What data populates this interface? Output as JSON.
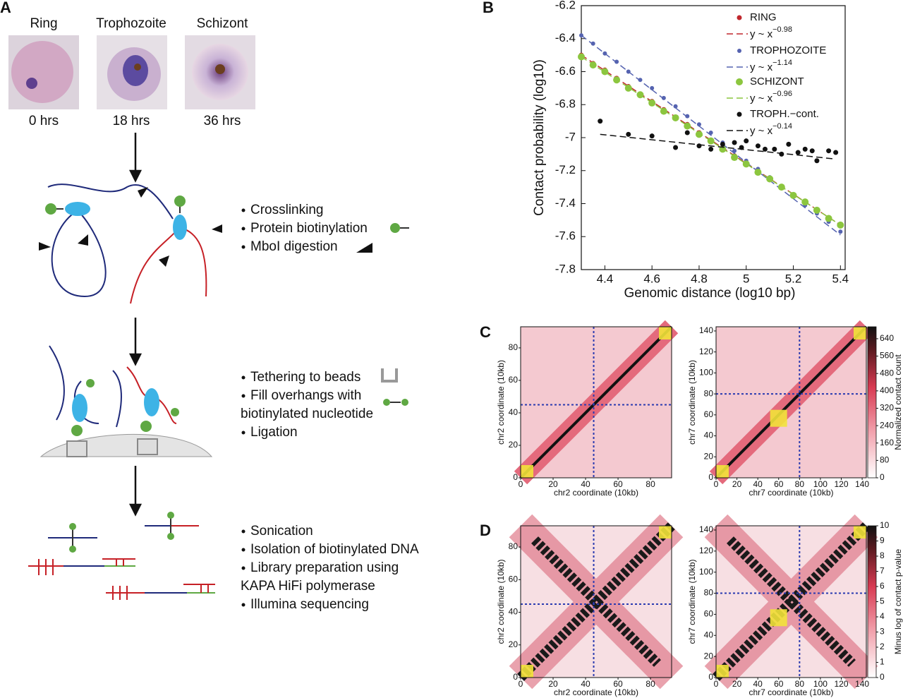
{
  "panel_labels": [
    "A",
    "B",
    "C",
    "D"
  ],
  "panel_a": {
    "stages": [
      {
        "name": "Ring",
        "time": "0 hrs"
      },
      {
        "name": "Trophozoite",
        "time": "18 hrs"
      },
      {
        "name": "Schizont",
        "time": "36 hrs"
      }
    ],
    "steps": [
      [
        "Crosslinking",
        "Protein biotinylation",
        "MboI digestion"
      ],
      [
        "Tethering to beads",
        "Fill overhangs with",
        "biotinylated nucleotide",
        "Ligation"
      ],
      [
        "Sonication",
        "Isolation of biotinylated DNA",
        "Library preparation using",
        "KAPA HiFi polymerase",
        "Illumina sequencing"
      ]
    ]
  },
  "chart_data": [
    {
      "type": "scatter",
      "xlabel": "Genomic distance (log10 bp)",
      "ylabel": "Contact probability (log10)",
      "xlim": [
        4.3,
        5.42
      ],
      "ylim": [
        -7.8,
        -6.2
      ],
      "xticks": [
        4.4,
        4.6,
        4.8,
        5,
        5.2,
        5.4
      ],
      "yticks": [
        -7.8,
        -7.6,
        -7.4,
        -7.2,
        -7,
        -6.8,
        -6.6,
        -6.4,
        -6.2
      ],
      "series": [
        {
          "name": "RING",
          "color": "#c0272d",
          "fit_label": "y ~ x",
          "fit_exponent": "−0.98",
          "x": [
            4.3,
            4.35,
            4.4,
            4.45,
            4.5,
            4.55,
            4.6,
            4.65,
            4.7,
            4.75,
            4.8,
            4.85,
            4.9,
            4.95,
            5.0,
            5.05,
            5.1,
            5.15,
            5.2,
            5.25,
            5.3,
            5.35,
            5.4
          ],
          "values": [
            -6.5,
            -6.55,
            -6.59,
            -6.64,
            -6.69,
            -6.74,
            -6.78,
            -6.83,
            -6.88,
            -6.92,
            -6.97,
            -7.02,
            -7.06,
            -7.11,
            -7.16,
            -7.21,
            -7.25,
            -7.3,
            -7.35,
            -7.39,
            -7.44,
            -7.49,
            -7.53
          ],
          "fit": {
            "x": [
              4.3,
              5.4
            ],
            "values": [
              -6.5,
              -7.53
            ]
          }
        },
        {
          "name": "TROPHOZOITE",
          "color": "#5563b0",
          "fit_label": "y ~ x",
          "fit_exponent": "−1.14",
          "x": [
            4.3,
            4.35,
            4.4,
            4.45,
            4.5,
            4.55,
            4.6,
            4.65,
            4.7,
            4.75,
            4.8,
            4.85,
            4.9,
            4.95,
            5.0,
            5.05,
            5.1,
            5.15,
            5.2,
            5.25,
            5.3,
            5.35,
            5.4
          ],
          "values": [
            -6.38,
            -6.43,
            -6.49,
            -6.54,
            -6.6,
            -6.65,
            -6.7,
            -6.76,
            -6.81,
            -6.87,
            -6.92,
            -6.97,
            -7.03,
            -7.08,
            -7.14,
            -7.19,
            -7.24,
            -7.3,
            -7.35,
            -7.41,
            -7.46,
            -7.51,
            -7.57
          ],
          "fit": {
            "x": [
              4.3,
              5.4
            ],
            "values": [
              -6.38,
              -7.59
            ]
          }
        },
        {
          "name": "SCHIZONT",
          "color": "#8cc63f",
          "fit_label": "y ~ x",
          "fit_exponent": "−0.96",
          "x": [
            4.3,
            4.35,
            4.4,
            4.45,
            4.5,
            4.55,
            4.6,
            4.65,
            4.7,
            4.75,
            4.8,
            4.85,
            4.9,
            4.95,
            5.0,
            5.05,
            5.1,
            5.15,
            5.2,
            5.25,
            5.3,
            5.35,
            5.4
          ],
          "values": [
            -6.51,
            -6.56,
            -6.6,
            -6.65,
            -6.7,
            -6.74,
            -6.79,
            -6.84,
            -6.88,
            -6.93,
            -6.98,
            -7.02,
            -7.07,
            -7.12,
            -7.16,
            -7.21,
            -7.25,
            -7.3,
            -7.35,
            -7.39,
            -7.44,
            -7.49,
            -7.53
          ],
          "fit": {
            "x": [
              4.3,
              5.4
            ],
            "values": [
              -6.51,
              -7.53
            ]
          }
        },
        {
          "name": "TROPH.−cont.",
          "color": "#111111",
          "fit_label": "y ~ x",
          "fit_exponent": "−0.14",
          "x": [
            4.38,
            4.5,
            4.6,
            4.7,
            4.75,
            4.8,
            4.85,
            4.9,
            4.95,
            4.98,
            5.0,
            5.05,
            5.08,
            5.12,
            5.15,
            5.18,
            5.22,
            5.25,
            5.28,
            5.3,
            5.35,
            5.38
          ],
          "values": [
            -6.9,
            -6.98,
            -6.99,
            -7.06,
            -6.97,
            -7.05,
            -7.07,
            -7.04,
            -7.03,
            -7.06,
            -7.02,
            -7.05,
            -7.07,
            -7.07,
            -7.1,
            -7.04,
            -7.09,
            -7.07,
            -7.08,
            -7.14,
            -7.08,
            -7.09
          ],
          "fit": {
            "x": [
              4.38,
              5.38
            ],
            "values": [
              -6.98,
              -7.13
            ]
          }
        }
      ]
    },
    {
      "type": "heatmap",
      "xlabel": "chr2 coordinate (10kb)",
      "ylabel": "chr2 coordinate (10kb)",
      "xlim": [
        0,
        93
      ],
      "ylim": [
        0,
        93
      ],
      "xticks": [
        0,
        20,
        40,
        60,
        80
      ],
      "yticks": [
        0,
        20,
        40,
        60,
        80
      ],
      "guide_lines": [
        45
      ]
    },
    {
      "type": "heatmap",
      "xlabel": "chr7 coordinate (10kb)",
      "ylabel": "chr7 coordinate (10kb)",
      "xlim": [
        0,
        144
      ],
      "ylim": [
        0,
        144
      ],
      "xticks": [
        0,
        20,
        40,
        60,
        80,
        100,
        120,
        140
      ],
      "yticks": [
        0,
        20,
        40,
        60,
        80,
        100,
        120,
        140
      ],
      "guide_lines": [
        80
      ],
      "colorbar": {
        "label": "Normalized contact count",
        "lim": [
          0,
          695
        ],
        "ticks": [
          0,
          80,
          160,
          240,
          320,
          400,
          480,
          560,
          640
        ]
      }
    },
    {
      "type": "heatmap",
      "xlabel": "chr2 coordinate (10kb)",
      "ylabel": "chr2 coordinate (10kb)",
      "xlim": [
        0,
        93
      ],
      "ylim": [
        0,
        93
      ],
      "xticks": [
        0,
        20,
        40,
        60,
        80
      ],
      "yticks": [
        0,
        20,
        40,
        60,
        80
      ],
      "guide_lines": [
        45
      ]
    },
    {
      "type": "heatmap",
      "xlabel": "chr7 coordinate (10kb)",
      "ylabel": "chr7 coordinate (10kb)",
      "xlim": [
        0,
        144
      ],
      "ylim": [
        0,
        144
      ],
      "xticks": [
        0,
        20,
        40,
        60,
        80,
        100,
        120,
        140
      ],
      "yticks": [
        0,
        20,
        40,
        60,
        80,
        100,
        120,
        140
      ],
      "guide_lines": [
        80
      ],
      "colorbar": {
        "label": "Minus log of contact p-value",
        "lim": [
          0,
          10
        ],
        "ticks": [
          0,
          1,
          2,
          3,
          4,
          5,
          6,
          7,
          8,
          9,
          10
        ]
      }
    }
  ]
}
